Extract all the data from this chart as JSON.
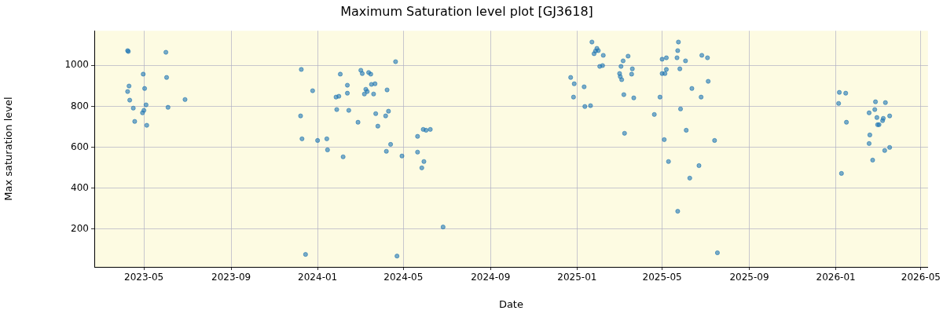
{
  "chart_data": {
    "type": "scatter",
    "title": "Maximum Saturation level plot [GJ3618]",
    "xlabel": "Date",
    "ylabel": "Max saturation level",
    "xlim": [
      "2023-02-20",
      "2026-05-11"
    ],
    "ylim": [
      15,
      1169
    ],
    "xticks": [
      "2023-05",
      "2023-09",
      "2024-01",
      "2024-05",
      "2024-09",
      "2025-01",
      "2025-05",
      "2025-09",
      "2026-01",
      "2026-05"
    ],
    "yticks": [
      200,
      400,
      600,
      800,
      1000
    ],
    "grid": true,
    "legend": false,
    "marker": "circle",
    "series": [
      {
        "color": "#1f77b4",
        "x": [
          "2023-04-08",
          "2023-04-09",
          "2023-06-01",
          "2023-04-30",
          "2023-06-02",
          "2023-04-10",
          "2023-05-02",
          "2023-04-08",
          "2023-04-11",
          "2023-06-28",
          "2023-05-04",
          "2023-06-04",
          "2023-04-16",
          "2023-05-01",
          "2023-04-29",
          "2023-04-18",
          "2023-05-05",
          "2024-04-20",
          "2023-12-09",
          "2024-02-02",
          "2024-03-02",
          "2024-03-04",
          "2024-03-13",
          "2024-03-16",
          "2024-02-12",
          "2024-02-12",
          "2024-03-17",
          "2024-03-22",
          "2024-03-09",
          "2024-03-11",
          "2024-03-07",
          "2024-03-20",
          "2024-04-08",
          "2023-12-25",
          "2024-01-27",
          "2024-01-31",
          "2024-01-28",
          "2024-02-14",
          "2024-03-23",
          "2024-04-06",
          "2024-04-10",
          "2023-12-08",
          "2024-02-27",
          "2024-03-26",
          "2024-05-29",
          "2024-06-02",
          "2024-06-08",
          "2024-05-21",
          "2023-12-10",
          "2024-01-01",
          "2024-01-14",
          "2024-01-15",
          "2024-02-06",
          "2024-04-13",
          "2024-04-07",
          "2024-04-29",
          "2024-05-21",
          "2024-05-30",
          "2024-05-27",
          "2024-06-26",
          "2023-12-15",
          "2024-04-22",
          "2025-01-22",
          "2025-01-29",
          "2025-01-27",
          "2025-01-31",
          "2025-01-25",
          "2025-02-07",
          "2025-02-02",
          "2025-02-06",
          "2025-03-14",
          "2025-03-07",
          "2025-03-04",
          "2025-03-20",
          "2025-03-19",
          "2025-03-02",
          "2025-03-03",
          "2025-03-05",
          "2024-12-23",
          "2024-12-28",
          "2025-01-11",
          "2024-12-27",
          "2025-01-12",
          "2025-01-20",
          "2025-03-08",
          "2025-03-22",
          "2025-03-09",
          "2025-05-24",
          "2025-05-23",
          "2025-05-22",
          "2025-05-01",
          "2025-05-07",
          "2025-06-03",
          "2025-06-26",
          "2025-07-04",
          "2025-05-07",
          "2025-05-26",
          "2025-05-01",
          "2025-05-05",
          "2025-07-05",
          "2025-06-12",
          "2025-04-28",
          "2025-06-25",
          "2025-05-27",
          "2025-04-20",
          "2025-06-04",
          "2025-05-04",
          "2025-07-14",
          "2025-05-10",
          "2025-06-22",
          "2025-06-09",
          "2025-05-23",
          "2025-07-18",
          "2026-01-06",
          "2026-01-15",
          "2026-01-05",
          "2026-02-26",
          "2026-03-12",
          "2026-02-25",
          "2026-02-17",
          "2026-02-28",
          "2026-03-09",
          "2026-03-08",
          "2026-03-18",
          "2026-01-16",
          "2026-03-01",
          "2026-03-03",
          "2026-02-18",
          "2026-02-17",
          "2026-03-18",
          "2026-03-11",
          "2026-02-22",
          "2026-01-09"
        ],
        "values": [
          1072,
          1068,
          1064,
          957,
          941,
          899,
          887,
          872,
          830,
          833,
          807,
          795,
          791,
          780,
          768,
          726,
          707,
          1018,
          980,
          957,
          976,
          960,
          965,
          957,
          903,
          864,
          907,
          910,
          883,
          872,
          860,
          860,
          880,
          876,
          845,
          849,
          784,
          780,
          764,
          753,
          776,
          753,
          722,
          703,
          687,
          683,
          687,
          653,
          641,
          633,
          641,
          587,
          553,
          614,
          580,
          557,
          576,
          530,
          499,
          210,
          76,
          68,
          1114,
          1083,
          1070,
          1072,
          1057,
          1049,
          995,
          999,
          1045,
          1022,
          995,
          983,
          957,
          960,
          945,
          930,
          941,
          910,
          895,
          845,
          799,
          803,
          857,
          841,
          668,
          1114,
          1072,
          1037,
          1030,
          1037,
          1022,
          1049,
          1037,
          980,
          983,
          960,
          960,
          922,
          887,
          845,
          845,
          787,
          760,
          683,
          637,
          633,
          530,
          510,
          449,
          287,
          84,
          868,
          864,
          814,
          822,
          818,
          784,
          768,
          745,
          741,
          730,
          753,
          722,
          710,
          710,
          660,
          618,
          599,
          584,
          537,
          472
        ]
      }
    ]
  }
}
